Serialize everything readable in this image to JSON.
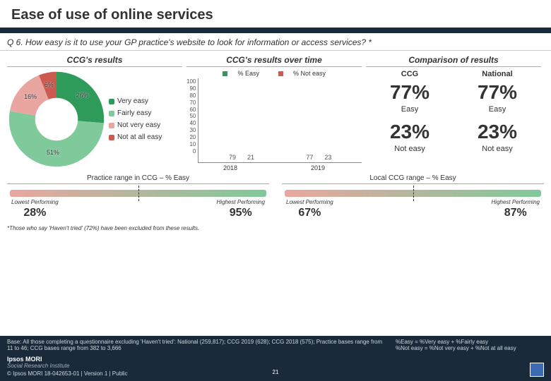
{
  "page_title": "Ease of use of online services",
  "question": "Q 6. How easy is it to use your GP practice's website to look for information or access services? *",
  "columns": {
    "left_head": "CCG's results",
    "mid_head": "CCG's results over time",
    "right_head": "Comparison of results"
  },
  "donut": {
    "type": "pie",
    "series": [
      {
        "label": "Very easy",
        "value": 26,
        "color": "#2e9b5b"
      },
      {
        "label": "Fairly easy",
        "value": 51,
        "color": "#7fc99a"
      },
      {
        "label": "Not very easy",
        "value": 16,
        "color": "#e9a6a0"
      },
      {
        "label": "Not at all easy",
        "value": 6,
        "color": "#cc5a4f"
      }
    ],
    "inner_hole": 0.45
  },
  "bar_chart": {
    "type": "grouped-bar",
    "series_labels": {
      "easy": "% Easy",
      "not_easy": "% Not easy"
    },
    "colors": {
      "easy": "#2e9b5b",
      "not_easy": "#cc5a4f"
    },
    "years": [
      "2018",
      "2019"
    ],
    "data": {
      "2018": {
        "easy": 79,
        "not_easy": 21
      },
      "2019": {
        "easy": 77,
        "not_easy": 23
      }
    },
    "ylim": [
      0,
      100
    ],
    "ytick_step": 10
  },
  "comparison": {
    "ccg_label": "CCG",
    "nat_label": "National",
    "easy": {
      "label": "Easy",
      "ccg": "77%",
      "nat": "77%"
    },
    "not_easy": {
      "label": "Not easy",
      "ccg": "23%",
      "nat": "23%"
    }
  },
  "ranges": {
    "practice": {
      "title": "Practice range in CCG – % Easy",
      "low_label": "Lowest Performing",
      "low_val": "28%",
      "high_label": "Highest Performing",
      "high_val": "95%",
      "gradient": [
        "#e9a6a0",
        "#7fc99a"
      ]
    },
    "local_ccg": {
      "title": "Local CCG range – % Easy",
      "low_label": "Lowest Performing",
      "low_val": "67%",
      "high_label": "Highest Performing",
      "high_val": "87%",
      "gradient": [
        "#e9a6a0",
        "#7fc99a"
      ]
    }
  },
  "footnote": "*Those who say 'Haven't tried' (72%) have been excluded from these results.",
  "footer": {
    "base": "Base: All those completing a questionnaire excluding 'Haven't tried': National (259,817); CCG 2019 (628); CCG 2018 (575); Practice bases range from 11 to 46; CCG bases range from 382 to 3,666",
    "defs": "%Easy = %Very easy + %Fairly easy\n%Not easy = %Not very easy + %Not at all easy",
    "logo": "Ipsos MORI",
    "logo_sub": "Social Research Institute",
    "copyright": "© Ipsos MORI    18-042653-01 | Version 1 | Public",
    "page_number": "21"
  }
}
